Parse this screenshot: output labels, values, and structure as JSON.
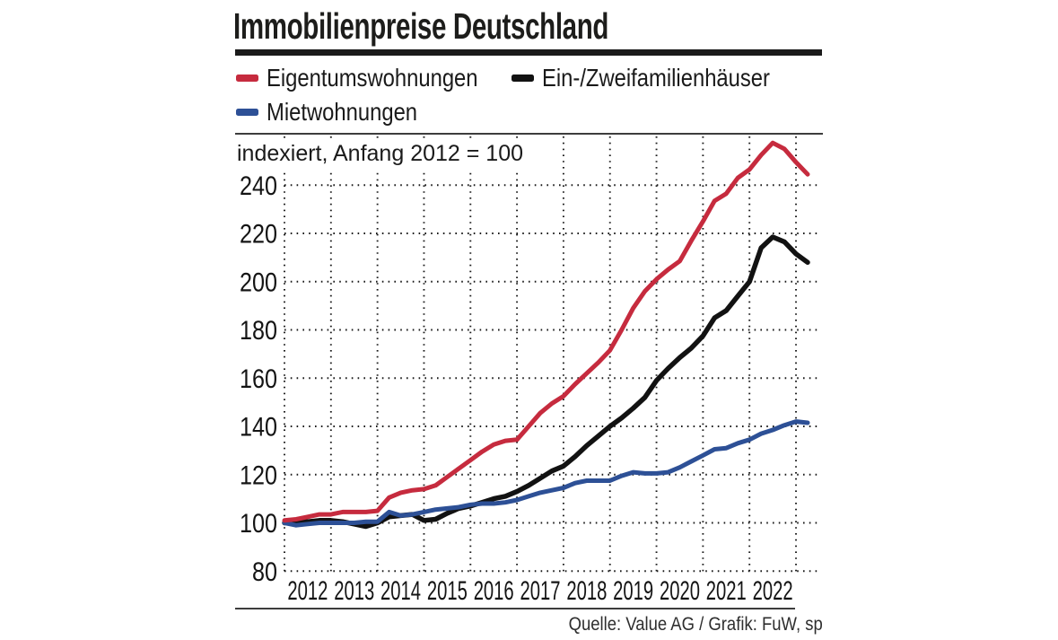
{
  "chart_data": {
    "type": "line",
    "title": "Immobilienpreise Deutschland",
    "subtitle": "indexiert, Anfang 2012 = 100",
    "source": "Quelle: Value AG / Grafik: FuW, sp",
    "x_start": 2012,
    "x_step": 0.25,
    "x_range": [
      2012,
      2023.25
    ],
    "ylim": [
      75,
      260
    ],
    "grid": "dotted",
    "legend_position": "top",
    "year_labels": [
      "2012",
      "2013",
      "2014",
      "2015",
      "2016",
      "2017",
      "2018",
      "2019",
      "2020",
      "2021",
      "2022"
    ],
    "y_ticks": [
      80,
      100,
      120,
      140,
      160,
      180,
      200,
      220,
      240
    ],
    "draw_order": [
      1,
      2,
      0
    ],
    "series": [
      {
        "name": "Eigentumswohnungen",
        "color": "#c62b3e",
        "values": [
          101,
          101.5,
          102.5,
          103.5,
          103.5,
          104.5,
          104.5,
          104.5,
          105,
          110.5,
          112.5,
          113.5,
          114,
          115.5,
          119,
          122.5,
          126,
          129.5,
          132.5,
          134,
          134.5,
          140,
          145.5,
          149.5,
          152.5,
          157.5,
          162,
          166.5,
          171.5,
          180,
          189,
          196,
          201,
          205,
          208.5,
          217,
          225,
          233.5,
          236.5,
          243,
          246.5,
          252.5,
          257.5,
          255,
          249.5,
          244.5
        ]
      },
      {
        "name": "Ein-/Zweifamilienhäuser",
        "color": "#121212",
        "values": [
          100,
          100.5,
          100.5,
          101,
          101,
          100.5,
          99.5,
          98.5,
          100,
          102.5,
          103,
          103.5,
          101,
          101.5,
          104,
          106,
          107,
          108.5,
          110,
          111,
          113,
          115.5,
          118.5,
          121.5,
          123.5,
          127.5,
          132,
          136,
          140,
          143.5,
          147.5,
          152,
          159,
          164,
          168.5,
          172.5,
          177.5,
          185,
          188,
          194,
          200,
          214,
          218.5,
          216.5,
          211.5,
          208
        ]
      },
      {
        "name": "Mietwohnungen",
        "color": "#2d5096",
        "values": [
          100,
          99,
          99.5,
          100,
          100,
          100,
          100,
          100.5,
          100.5,
          104.5,
          103,
          103.5,
          104.5,
          105.5,
          106,
          106.5,
          107.5,
          108,
          108,
          108.5,
          109.5,
          111,
          112.5,
          113.5,
          114.5,
          116.5,
          117.5,
          117.5,
          117.5,
          119.5,
          121,
          120.5,
          120.5,
          121,
          123,
          125.5,
          128,
          130.5,
          131,
          133,
          134.5,
          137,
          138.5,
          140.5,
          142,
          141.5
        ]
      }
    ]
  }
}
